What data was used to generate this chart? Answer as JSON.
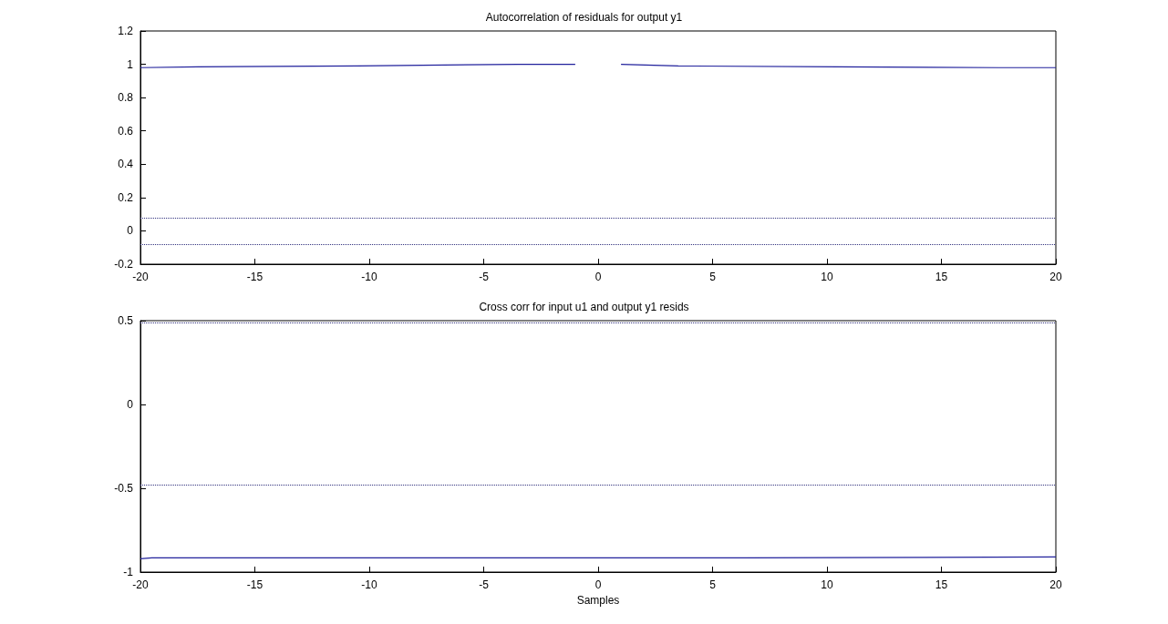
{
  "chart_data": [
    {
      "type": "line",
      "title": "Autocorrelation of residuals for output y1",
      "xlim": [
        -20,
        20
      ],
      "xticks": [
        -20,
        -15,
        -10,
        -5,
        0,
        5,
        10,
        15,
        20
      ],
      "ylim": [
        -0.2,
        1.2
      ],
      "yticks": [
        -0.2,
        0,
        0.2,
        0.4,
        0.6,
        0.8,
        1,
        1.2
      ],
      "marker": "none",
      "line_style": "solid",
      "series": [
        {
          "color": "#21219c",
          "x": [
            -20,
            -17.5,
            -10.5,
            -3.5,
            -1,
            0,
            1,
            3.5,
            10.5,
            17.5,
            20
          ],
          "values": [
            0.98,
            0.985,
            0.99,
            1,
            1,
            null,
            1,
            0.99,
            0.985,
            0.98,
            0.98
          ]
        }
      ],
      "ref_lines": [
        {
          "axis": "y",
          "value": 0.08,
          "color": "#33337f",
          "line_style": "dotted"
        },
        {
          "axis": "y",
          "value": -0.08,
          "color": "#33337f",
          "line_style": "dotted"
        }
      ]
    },
    {
      "type": "line",
      "title": "Cross corr for input u1 and output y1 resids",
      "xlabel": "Samples",
      "xlim": [
        -20,
        20
      ],
      "xticks": [
        -20,
        -15,
        -10,
        -5,
        0,
        5,
        10,
        15,
        20
      ],
      "ylim": [
        -1,
        0.5
      ],
      "yticks": [
        -1,
        -0.5,
        0,
        0.5
      ],
      "marker": "none",
      "line_style": "solid",
      "series": [
        {
          "color": "#21219c",
          "x": [
            -20,
            -19.5,
            6.5,
            20
          ],
          "values": [
            -0.92,
            -0.915,
            -0.915,
            -0.91
          ]
        }
      ],
      "ref_lines": [
        {
          "axis": "y",
          "value": 0.49,
          "color": "#33337f",
          "line_style": "dotted"
        },
        {
          "axis": "y",
          "value": -0.48,
          "color": "#33337f",
          "line_style": "dotted"
        }
      ]
    }
  ]
}
